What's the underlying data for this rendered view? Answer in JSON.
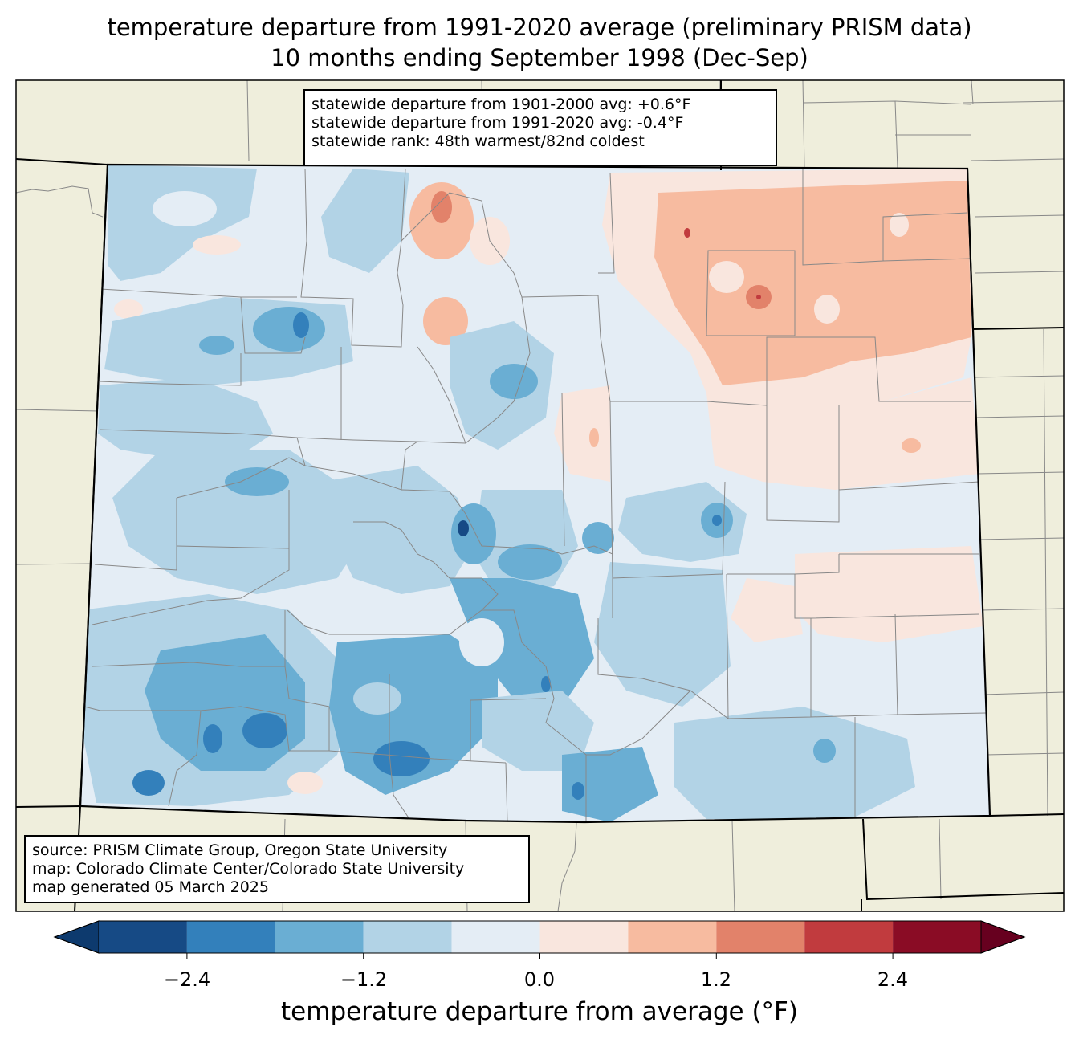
{
  "title": {
    "line1": "temperature departure from 1991-2020 average (preliminary PRISM data)",
    "line2": "10 months ending September 1998 (Dec-Sep)"
  },
  "stats": {
    "line1": "statewide departure from 1901-2000 avg: +0.6°F",
    "line2": "statewide departure from 1991-2020 avg: -0.4°F",
    "line3": "statewide rank: 48th warmest/82nd coldest"
  },
  "source": {
    "line1": "source: PRISM Climate Group, Oregon State University",
    "line2": "map: Colorado Climate Center/Colorado State University",
    "line3": "map generated 05 March 2025"
  },
  "colorbar": {
    "label": "temperature departure from average (°F)",
    "ticks": [
      "−2.4",
      "−1.2",
      "0.0",
      "1.2",
      "2.4"
    ],
    "bin_edges": [
      -3.0,
      -2.4,
      -1.8,
      -1.2,
      -0.6,
      0.0,
      0.6,
      1.2,
      1.8,
      2.4,
      3.0
    ],
    "colors": [
      "#0d3a6e",
      "#164a85",
      "#3380bb",
      "#6aaed3",
      "#b2d3e6",
      "#e4edf5",
      "#f9e6de",
      "#f7bba0",
      "#e2826a",
      "#c13b3e",
      "#8a0c25",
      "#67001f"
    ]
  },
  "map_colors": {
    "background": "#efeedc",
    "state_border": "#000000",
    "county_border": "#888888"
  }
}
